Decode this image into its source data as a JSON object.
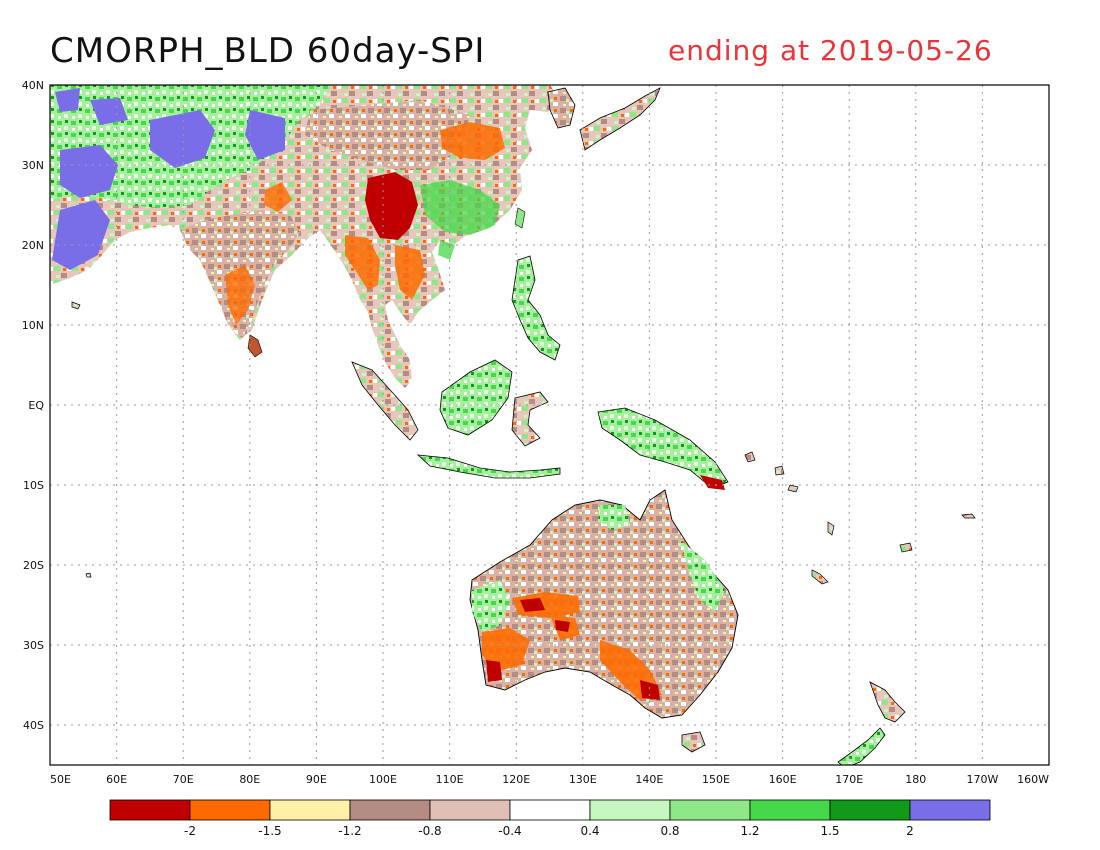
{
  "title": "CMORPH_BLD 60day-SPI",
  "subtitle": "ending at 2019-05-26",
  "colors": {
    "subtitle": "#e8353a",
    "frame": "#000000",
    "grid": "#9a9a9a",
    "coast": "#000000"
  },
  "map": {
    "lon_min": 50,
    "lon_max": 200,
    "lat_min": -45,
    "lat_max": 40,
    "lon_ticks": [
      "50E",
      "60E",
      "70E",
      "80E",
      "90E",
      "100E",
      "110E",
      "120E",
      "130E",
      "140E",
      "150E",
      "160E",
      "170E",
      "180",
      "170W",
      "160W"
    ],
    "lat_ticks": [
      "40N",
      "30N",
      "20N",
      "10N",
      "EQ",
      "10S",
      "20S",
      "30S",
      "40S"
    ]
  },
  "colorbar": {
    "colors": [
      "#c00000",
      "#ff6a00",
      "#fff2a8",
      "#b48c82",
      "#e0bfb4",
      "#ffffff",
      "#c6f7c0",
      "#8fe888",
      "#45d84a",
      "#119a1a",
      "#7a6ee8"
    ],
    "labels": [
      "-2",
      "-1.5",
      "-1.2",
      "-0.8",
      "-0.4",
      "0.4",
      "0.8",
      "1.2",
      "1.5",
      "2"
    ]
  }
}
